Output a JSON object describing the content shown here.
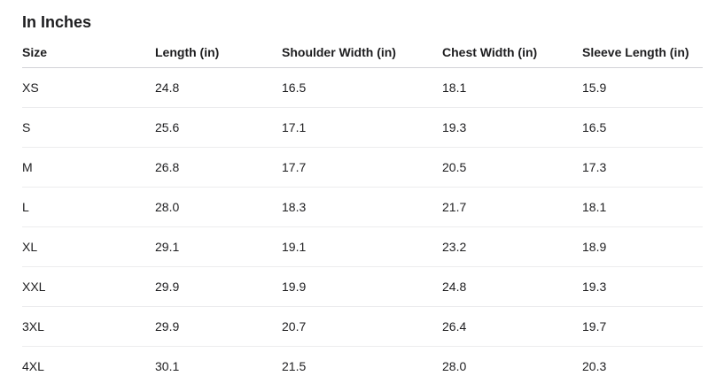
{
  "title": "In Inches",
  "table": {
    "header": [
      "Size",
      "Length (in)",
      "Shoulder Width (in)",
      "Chest Width (in)",
      "Sleeve Length (in)"
    ],
    "rows": [
      [
        "XS",
        "24.8",
        "16.5",
        "18.1",
        "15.9"
      ],
      [
        "S",
        "25.6",
        "17.1",
        "19.3",
        "16.5"
      ],
      [
        "M",
        "26.8",
        "17.7",
        "20.5",
        "17.3"
      ],
      [
        "L",
        "28.0",
        "18.3",
        "21.7",
        "18.1"
      ],
      [
        "XL",
        "29.1",
        "19.1",
        "23.2",
        "18.9"
      ],
      [
        "XXL",
        "29.9",
        "19.9",
        "24.8",
        "19.3"
      ],
      [
        "3XL",
        "29.9",
        "20.7",
        "26.4",
        "19.7"
      ],
      [
        "4XL",
        "30.1",
        "21.5",
        "28.0",
        "20.3"
      ]
    ]
  }
}
